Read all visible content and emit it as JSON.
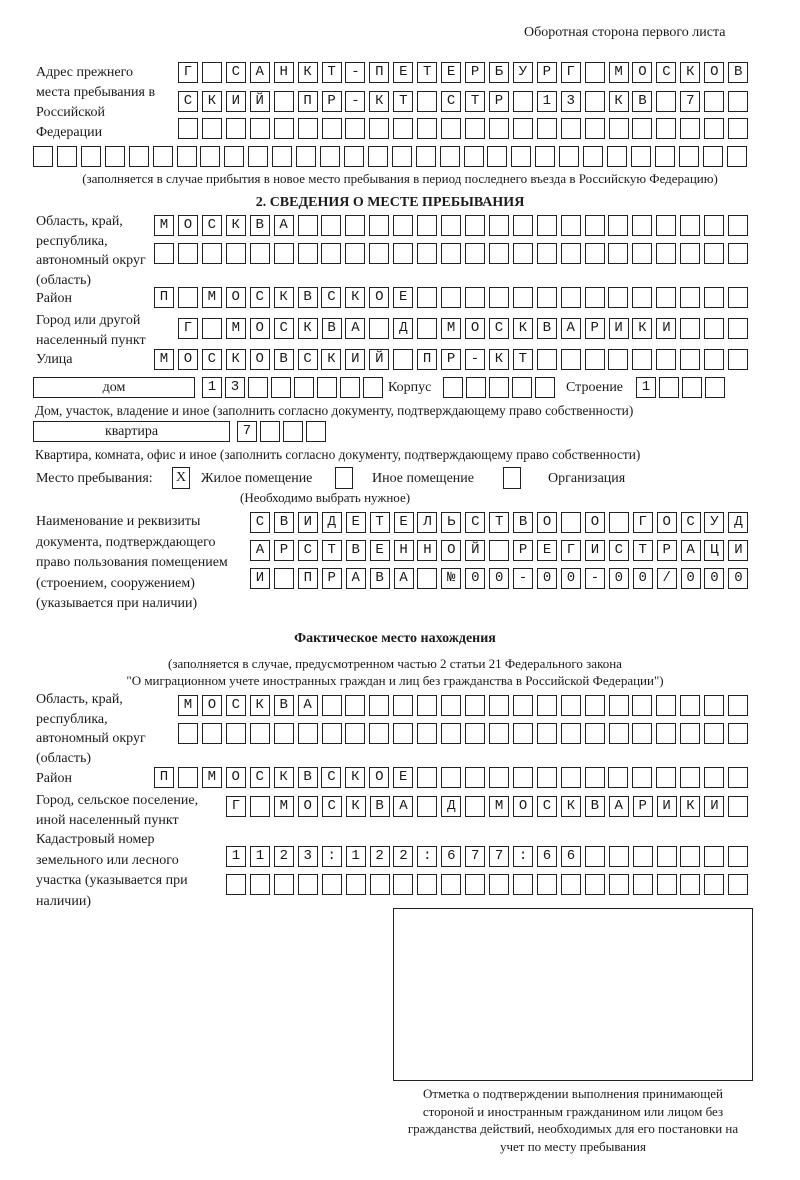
{
  "header": {
    "side_note": "Оборотная сторона первого листа"
  },
  "prev_address": {
    "label": "Адрес прежнего места пребывания в Российской Федерации",
    "rows": [
      "Г САНКТ-ПЕТЕРБУРГ МОСКОВ",
      "СКИЙ ПР-КТ СТР 13 КВ 7  ",
      "                        ",
      "                              "
    ],
    "note": "(заполняется в случае прибытия в новое место пребывания в период последнего въезда в Российскую Федерацию)"
  },
  "stay": {
    "section_title": "2. СВЕДЕНИЯ О МЕСТЕ ПРЕБЫВАНИЯ",
    "region_label": "Область, край, республика, автономный округ (область)",
    "region_rows": [
      "МОСКВА                   ",
      "                         "
    ],
    "district_label": "Район",
    "district_row": "П МОСКВСКОЕ              ",
    "city_label": "Город или другой населенный пункт",
    "city_row": "Г МОСКВА Д МОСКВАРИКИ   ",
    "street_label": "Улица",
    "street_row": "МОСКОВСКИЙ ПР-КТ         ",
    "house_type": "дом",
    "house_row": "13      ",
    "korpus_label": "Корпус",
    "korpus_row": "     ",
    "building_label": "Строение",
    "building_row": "1   ",
    "house_note": "Дом, участок, владение и иное (заполнить согласно документу, подтверждающему право собственности)",
    "flat_type": "квартира",
    "flat_row": "7   ",
    "flat_note": "Квартира, комната, офис и иное (заполнить согласно документу, подтверждающему право собственности)",
    "place_label": "Место пребывания:",
    "options": [
      {
        "label": "Жилое помещение",
        "mark": "X"
      },
      {
        "label": "Иное помещение",
        "mark": ""
      },
      {
        "label": "Организация",
        "mark": ""
      }
    ],
    "place_note": "(Необходимо выбрать нужное)",
    "doc_label": "Наименование и реквизиты документа, подтверждающего право пользования помещением (строением, сооружением) (указывается при наличии)",
    "doc_rows": [
      "СВИДЕТЕЛЬСТВО О ГОСУД",
      "АРСТВЕННОЙ РЕГИСТРАЦИ",
      "И ПРАВА №00-00-00/000"
    ]
  },
  "actual": {
    "title": "Фактическое место нахождения",
    "note1": "(заполняется в случае, предусмотренном частью 2 статьи 21 Федерального закона",
    "note2": "\"О миграционном учете иностранных граждан и лиц без гражданства в Российской Федерации\")",
    "region_label": "Область, край, республика, автономный округ (область)",
    "region_rows": [
      "МОСКВА                  ",
      "                        "
    ],
    "district_label": "Район",
    "district_row": "П МОСКВСКОЕ              ",
    "city_label": "Город, сельское поселение, иной населенный пункт",
    "city_row": "Г МОСКВА Д МОСКВАРИКИ ",
    "cadastre_label": "Кадастровый номер земельного или лесного участка (указывается при наличии)",
    "cadastre_rows": [
      "1123:122:677:66       ",
      "                      "
    ]
  },
  "stamp": {
    "caption": "Отметка о подтверждении выполнения принимающей стороной и иностранным гражданином или лицом без гражданства действий, необходимых для его постановки на учет по месту пребывания"
  }
}
